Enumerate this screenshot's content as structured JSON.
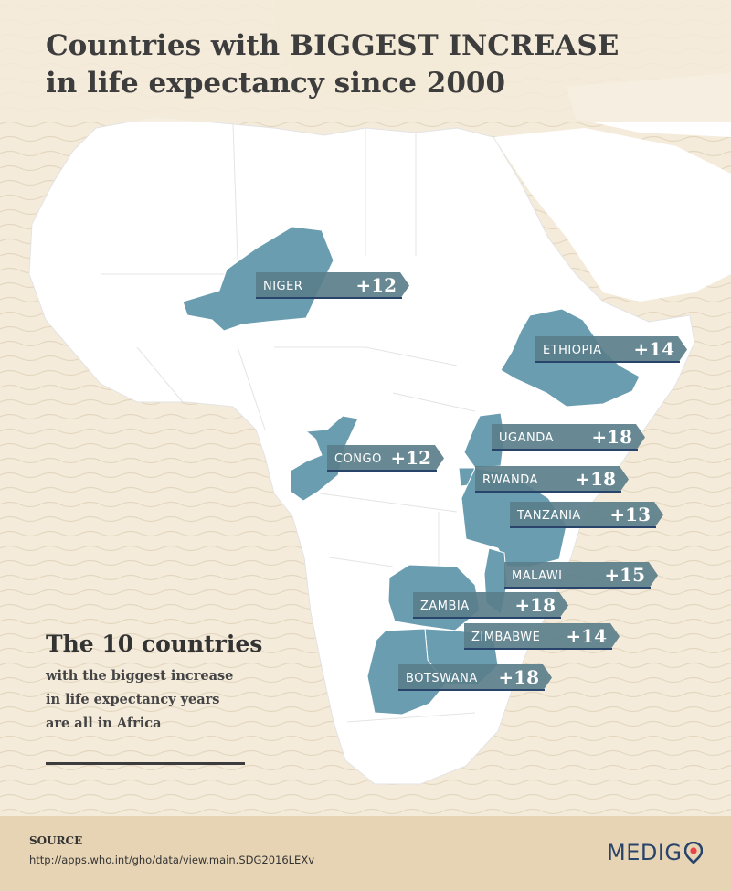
{
  "title": {
    "line1": "Countries with BIGGEST INCREASE",
    "line2": "in life expectancy since 2000"
  },
  "summary": {
    "headline": "The 10 countries",
    "line1": "with the biggest increase",
    "line2": "in life expectancy years",
    "line3": "are all in Africa"
  },
  "countries": [
    {
      "name": "NIGER",
      "value": "+12"
    },
    {
      "name": "ETHIOPIA",
      "value": "+14"
    },
    {
      "name": "UGANDA",
      "value": "+18"
    },
    {
      "name": "CONGO",
      "value": "+12"
    },
    {
      "name": "RWANDA",
      "value": "+18"
    },
    {
      "name": "TANZANIA",
      "value": "+13"
    },
    {
      "name": "MALAWI",
      "value": "+15"
    },
    {
      "name": "ZAMBIA",
      "value": "+18"
    },
    {
      "name": "ZIMBABWE",
      "value": "+14"
    },
    {
      "name": "BOTSWANA",
      "value": "+18"
    }
  ],
  "source": {
    "label": "SOURCE",
    "url": "http://apps.who.int/gho/data/view.main.SDG2016LEXv"
  },
  "brand": {
    "name": "MEDIG"
  },
  "colors": {
    "background": "#f4ebdb",
    "land": "#ffffff",
    "highlight": "#6a9db0",
    "tag": "#5b7f8b",
    "footer": "#e7d4b4",
    "brand": "#29446b",
    "brand_accent": "#e8434a"
  }
}
